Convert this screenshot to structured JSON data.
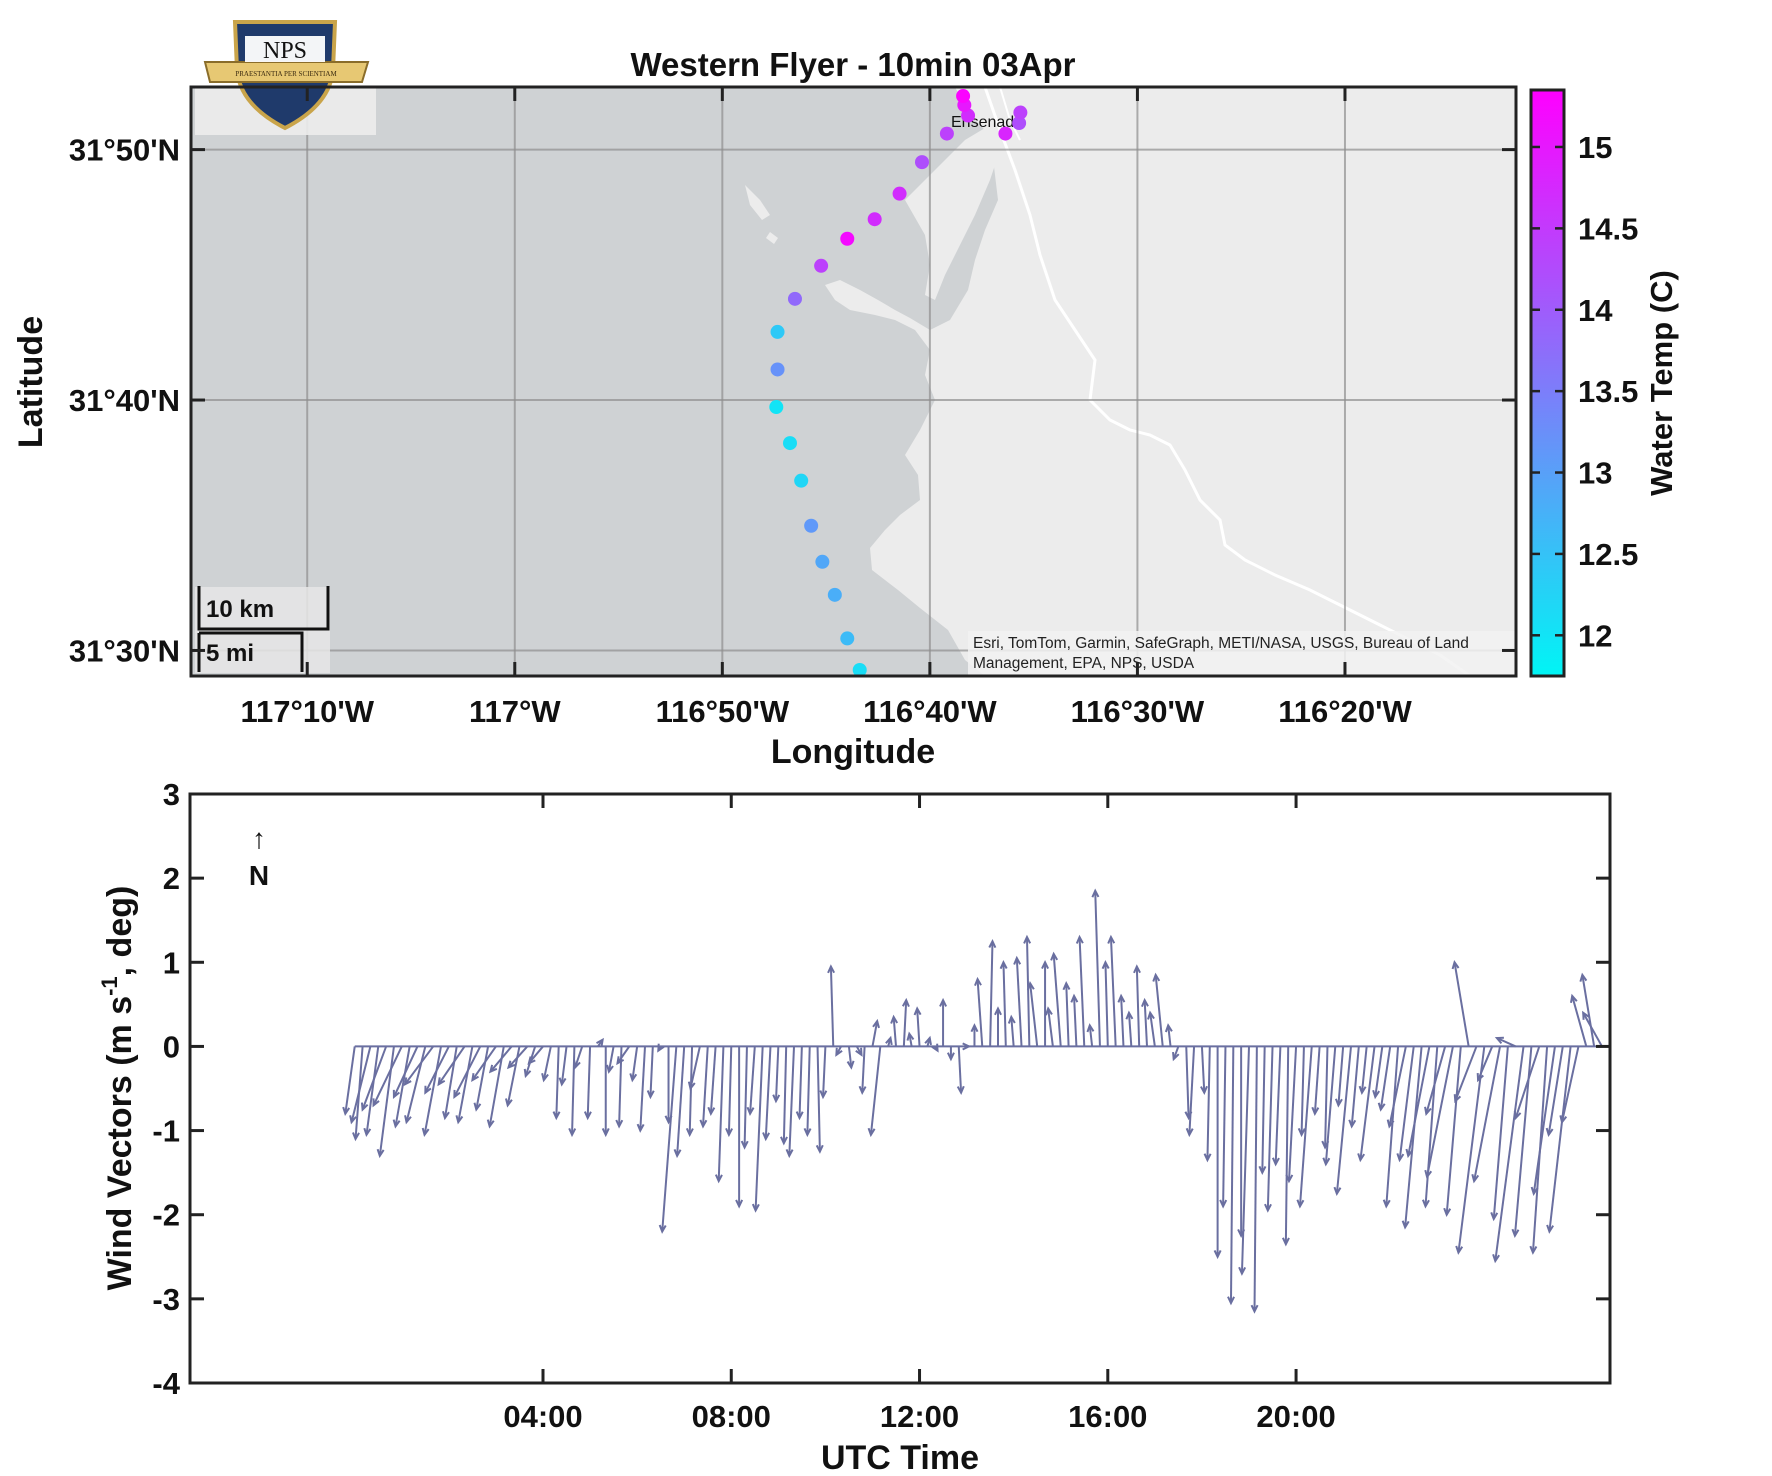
{
  "logo": {
    "text": "NPS",
    "motto": "PRAESTANTIA PER SCIENTIAM"
  },
  "map": {
    "title": "Western Flyer - 10min 03Apr",
    "xlabel": "Longitude",
    "ylabel": "Latitude",
    "x_ticks": [
      "117°10'W",
      "117°W",
      "116°50'W",
      "116°40'W",
      "116°30'W",
      "116°20'W"
    ],
    "y_ticks": [
      "31°50'N",
      "31°40'N",
      "31°30'N"
    ],
    "place_label": "Ensenada",
    "attribution_line1": "Esri, TomTom, Garmin, SafeGraph, METI/NASA, USGS, Bureau of Land",
    "attribution_line2": "Management, EPA, NPS, USDA",
    "scalebar_km": "10 km",
    "scalebar_mi": "5 mi",
    "colors": {
      "ocean": "#cfd2d4",
      "land": "#ececec",
      "road": "#ffffff",
      "grid": "#9a9a9a"
    }
  },
  "colorbar": {
    "label": "Water Temp (C)",
    "ticks": [
      "15",
      "14.5",
      "14",
      "13.5",
      "13",
      "12.5",
      "12"
    ],
    "range": [
      11.75,
      15.35
    ],
    "color_low": "#00f5f5",
    "color_high": "#ff00ff"
  },
  "wind": {
    "ylabel_main": "Wind Vectors (m s",
    "ylabel_sup": "-1",
    "ylabel_tail": ", deg)",
    "xlabel": "UTC Time",
    "x_ticks": [
      "04:00",
      "08:00",
      "12:00",
      "16:00",
      "20:00"
    ],
    "y_ticks": [
      "3",
      "2",
      "1",
      "0",
      "-1",
      "-2",
      "-3",
      "-4"
    ],
    "north_label": "N",
    "north_arrow": "↑",
    "line_color": "#6a6fa0"
  },
  "chart_data": [
    {
      "type": "scatter",
      "title": "Western Flyer - 10min 03Apr",
      "xlabel": "Longitude",
      "ylabel": "Latitude",
      "xlim": [
        -117.26,
        -116.196
      ],
      "ylim": [
        31.483,
        31.875
      ],
      "colorbar_label": "Water Temp (C)",
      "colorbar_range": [
        11.75,
        15.35
      ],
      "points": [
        {
          "lon": -116.723,
          "lat": 31.487,
          "temp": 12.1
        },
        {
          "lon": -116.733,
          "lat": 31.508,
          "temp": 12.6
        },
        {
          "lon": -116.743,
          "lat": 31.537,
          "temp": 12.8
        },
        {
          "lon": -116.753,
          "lat": 31.559,
          "temp": 12.9
        },
        {
          "lon": -116.762,
          "lat": 31.583,
          "temp": 13.1
        },
        {
          "lon": -116.77,
          "lat": 31.613,
          "temp": 12.2
        },
        {
          "lon": -116.779,
          "lat": 31.638,
          "temp": 12.1
        },
        {
          "lon": -116.79,
          "lat": 31.662,
          "temp": 12.0
        },
        {
          "lon": -116.789,
          "lat": 31.687,
          "temp": 13.2
        },
        {
          "lon": -116.789,
          "lat": 31.712,
          "temp": 12.4
        },
        {
          "lon": -116.775,
          "lat": 31.734,
          "temp": 13.8
        },
        {
          "lon": -116.754,
          "lat": 31.756,
          "temp": 14.4
        },
        {
          "lon": -116.733,
          "lat": 31.774,
          "temp": 15.2
        },
        {
          "lon": -116.711,
          "lat": 31.787,
          "temp": 14.7
        },
        {
          "lon": -116.691,
          "lat": 31.804,
          "temp": 14.7
        },
        {
          "lon": -116.673,
          "lat": 31.825,
          "temp": 14.2
        },
        {
          "lon": -116.653,
          "lat": 31.844,
          "temp": 14.4
        },
        {
          "lon": -116.636,
          "lat": 31.856,
          "temp": 14.7
        },
        {
          "lon": -116.639,
          "lat": 31.863,
          "temp": 15.0
        },
        {
          "lon": -116.64,
          "lat": 31.869,
          "temp": 15.3
        },
        {
          "lon": -116.606,
          "lat": 31.844,
          "temp": 14.8
        },
        {
          "lon": -116.595,
          "lat": 31.851,
          "temp": 14.2
        },
        {
          "lon": -116.594,
          "lat": 31.858,
          "temp": 14.4
        }
      ]
    },
    {
      "type": "line",
      "title": "",
      "xlabel": "UTC Time",
      "ylabel": "Wind Vectors (m s-1, deg)",
      "x_units": "hours UTC",
      "xlim": [
        -3.5,
        26.67
      ],
      "ylim": [
        -4,
        3
      ],
      "description_of_marks": "feather plot; each vector starts at (hour, 0) and ends at (hour + u, v)",
      "vectors": [
        {
          "t": 0.0,
          "u": -0.2,
          "v": -0.8
        },
        {
          "t": 0.167,
          "u": -0.15,
          "v": -1.1
        },
        {
          "t": 0.333,
          "u": -0.4,
          "v": -0.9
        },
        {
          "t": 0.5,
          "u": -0.25,
          "v": -1.05
        },
        {
          "t": 0.667,
          "u": -0.5,
          "v": -0.75
        },
        {
          "t": 0.833,
          "u": -0.3,
          "v": -1.3
        },
        {
          "t": 1.0,
          "u": -0.6,
          "v": -0.7
        },
        {
          "t": 1.167,
          "u": -0.3,
          "v": -0.95
        },
        {
          "t": 1.333,
          "u": -0.5,
          "v": -0.6
        },
        {
          "t": 1.5,
          "u": -0.4,
          "v": -0.9
        },
        {
          "t": 1.667,
          "u": -0.6,
          "v": -0.45
        },
        {
          "t": 1.833,
          "u": -0.35,
          "v": -1.05
        },
        {
          "t": 2.0,
          "u": -0.5,
          "v": -0.55
        },
        {
          "t": 2.167,
          "u": -0.25,
          "v": -0.85
        },
        {
          "t": 2.333,
          "u": -0.55,
          "v": -0.45
        },
        {
          "t": 2.5,
          "u": -0.3,
          "v": -0.9
        },
        {
          "t": 2.667,
          "u": -0.55,
          "v": -0.6
        },
        {
          "t": 2.833,
          "u": -0.25,
          "v": -0.75
        },
        {
          "t": 3.0,
          "u": -0.5,
          "v": -0.4
        },
        {
          "t": 3.167,
          "u": -0.3,
          "v": -0.95
        },
        {
          "t": 3.333,
          "u": -0.45,
          "v": -0.3
        },
        {
          "t": 3.5,
          "u": -0.25,
          "v": -0.7
        },
        {
          "t": 3.667,
          "u": -0.4,
          "v": -0.25
        },
        {
          "t": 3.833,
          "u": -0.2,
          "v": -0.35
        },
        {
          "t": 4.0,
          "u": -0.3,
          "v": -0.2
        },
        {
          "t": 4.167,
          "u": -0.15,
          "v": -0.4
        },
        {
          "t": 4.333,
          "u": -0.05,
          "v": -0.85
        },
        {
          "t": 4.5,
          "u": -0.1,
          "v": -0.45
        },
        {
          "t": 4.667,
          "u": -0.05,
          "v": -1.05
        },
        {
          "t": 4.833,
          "u": -0.15,
          "v": -0.25
        },
        {
          "t": 5.0,
          "u": -0.05,
          "v": -0.85
        },
        {
          "t": 5.167,
          "u": 0.1,
          "v": 0.08
        },
        {
          "t": 5.333,
          "u": 0.0,
          "v": -1.05
        },
        {
          "t": 5.5,
          "u": -0.1,
          "v": -0.3
        },
        {
          "t": 5.667,
          "u": -0.05,
          "v": -0.95
        },
        {
          "t": 5.833,
          "u": -0.25,
          "v": -0.2
        },
        {
          "t": 6.0,
          "u": -0.1,
          "v": -0.4
        },
        {
          "t": 6.167,
          "u": -0.1,
          "v": -1.0
        },
        {
          "t": 6.333,
          "u": -0.05,
          "v": -0.6
        },
        {
          "t": 6.5,
          "u": -0.05,
          "v": -0.05
        },
        {
          "t": 6.667,
          "u": 0.0,
          "v": -0.9
        },
        {
          "t": 6.833,
          "u": -0.3,
          "v": -2.2
        },
        {
          "t": 7.0,
          "u": -0.15,
          "v": -1.3
        },
        {
          "t": 7.167,
          "u": -0.05,
          "v": -1.05
        },
        {
          "t": 7.333,
          "u": -0.2,
          "v": -0.5
        },
        {
          "t": 7.5,
          "u": -0.1,
          "v": -0.95
        },
        {
          "t": 7.667,
          "u": -0.1,
          "v": -0.8
        },
        {
          "t": 7.833,
          "u": -0.1,
          "v": -1.6
        },
        {
          "t": 8.0,
          "u": -0.05,
          "v": -1.05
        },
        {
          "t": 8.167,
          "u": 0.0,
          "v": -1.9
        },
        {
          "t": 8.333,
          "u": -0.05,
          "v": -1.2
        },
        {
          "t": 8.5,
          "u": -0.1,
          "v": -0.8
        },
        {
          "t": 8.667,
          "u": -0.15,
          "v": -1.95
        },
        {
          "t": 8.833,
          "u": -0.1,
          "v": -1.1
        },
        {
          "t": 9.0,
          "u": -0.05,
          "v": -0.65
        },
        {
          "t": 9.167,
          "u": -0.05,
          "v": -1.15
        },
        {
          "t": 9.333,
          "u": -0.1,
          "v": -1.3
        },
        {
          "t": 9.5,
          "u": -0.05,
          "v": -0.85
        },
        {
          "t": 9.667,
          "u": -0.05,
          "v": -1.05
        },
        {
          "t": 9.833,
          "u": 0.05,
          "v": -1.25
        },
        {
          "t": 10.0,
          "u": -0.05,
          "v": -0.6
        },
        {
          "t": 10.167,
          "u": -0.05,
          "v": 0.95
        },
        {
          "t": 10.333,
          "u": -0.1,
          "v": -0.1
        },
        {
          "t": 10.5,
          "u": 0.05,
          "v": -0.25
        },
        {
          "t": 10.667,
          "u": 0.1,
          "v": -0.1
        },
        {
          "t": 10.833,
          "u": -0.05,
          "v": -0.55
        },
        {
          "t": 11.0,
          "u": 0.1,
          "v": 0.3
        },
        {
          "t": 11.167,
          "u": -0.2,
          "v": -1.05
        },
        {
          "t": 11.333,
          "u": 0.05,
          "v": 0.1
        },
        {
          "t": 11.5,
          "u": -0.05,
          "v": 0.35
        },
        {
          "t": 11.667,
          "u": 0.05,
          "v": 0.55
        },
        {
          "t": 11.833,
          "u": -0.05,
          "v": 0.15
        },
        {
          "t": 12.0,
          "u": -0.05,
          "v": 0.45
        },
        {
          "t": 12.167,
          "u": 0.05,
          "v": 0.1
        },
        {
          "t": 12.333,
          "u": 0.05,
          "v": -0.05
        },
        {
          "t": 12.5,
          "u": 0.0,
          "v": 0.55
        },
        {
          "t": 12.667,
          "u": 0.0,
          "v": -0.15
        },
        {
          "t": 12.833,
          "u": 0.05,
          "v": -0.55
        },
        {
          "t": 13.0,
          "u": 0.05,
          "v": 0.0
        },
        {
          "t": 13.167,
          "u": 0.0,
          "v": 0.25
        },
        {
          "t": 13.333,
          "u": -0.1,
          "v": 0.8
        },
        {
          "t": 13.5,
          "u": 0.05,
          "v": 1.25
        },
        {
          "t": 13.667,
          "u": 0.0,
          "v": 0.45
        },
        {
          "t": 13.833,
          "u": -0.05,
          "v": 1.0
        },
        {
          "t": 14.0,
          "u": -0.05,
          "v": 0.35
        },
        {
          "t": 14.167,
          "u": -0.1,
          "v": 1.05
        },
        {
          "t": 14.333,
          "u": -0.05,
          "v": 1.3
        },
        {
          "t": 14.5,
          "u": -0.15,
          "v": 0.75
        },
        {
          "t": 14.667,
          "u": 0.0,
          "v": 1.0
        },
        {
          "t": 14.833,
          "u": -0.1,
          "v": 0.45
        },
        {
          "t": 15.0,
          "u": -0.15,
          "v": 1.1
        },
        {
          "t": 15.167,
          "u": -0.05,
          "v": 0.75
        },
        {
          "t": 15.333,
          "u": -0.05,
          "v": 0.6
        },
        {
          "t": 15.5,
          "u": -0.1,
          "v": 1.3
        },
        {
          "t": 15.667,
          "u": -0.05,
          "v": 0.25
        },
        {
          "t": 15.833,
          "u": -0.1,
          "v": 1.85
        },
        {
          "t": 16.0,
          "u": -0.05,
          "v": 1.0
        },
        {
          "t": 16.167,
          "u": -0.1,
          "v": 1.3
        },
        {
          "t": 16.333,
          "u": -0.05,
          "v": 0.6
        },
        {
          "t": 16.5,
          "u": -0.05,
          "v": 0.4
        },
        {
          "t": 16.667,
          "u": -0.05,
          "v": 0.95
        },
        {
          "t": 16.833,
          "u": -0.05,
          "v": 0.55
        },
        {
          "t": 17.0,
          "u": -0.1,
          "v": 0.4
        },
        {
          "t": 17.167,
          "u": -0.15,
          "v": 0.85
        },
        {
          "t": 17.333,
          "u": -0.05,
          "v": 0.25
        },
        {
          "t": 17.5,
          "u": -0.1,
          "v": -0.15
        },
        {
          "t": 17.667,
          "u": 0.05,
          "v": -0.85
        },
        {
          "t": 17.833,
          "u": -0.1,
          "v": -1.05
        },
        {
          "t": 18.0,
          "u": 0.05,
          "v": -0.55
        },
        {
          "t": 18.167,
          "u": -0.05,
          "v": -1.35
        },
        {
          "t": 18.333,
          "u": 0.0,
          "v": -2.5
        },
        {
          "t": 18.5,
          "u": -0.05,
          "v": -1.9
        },
        {
          "t": 18.667,
          "u": -0.05,
          "v": -3.05
        },
        {
          "t": 18.833,
          "u": 0.0,
          "v": -2.25
        },
        {
          "t": 19.0,
          "u": -0.15,
          "v": -2.7
        },
        {
          "t": 19.167,
          "u": -0.05,
          "v": -3.15
        },
        {
          "t": 19.333,
          "u": -0.05,
          "v": -1.5
        },
        {
          "t": 19.5,
          "u": -0.1,
          "v": -1.95
        },
        {
          "t": 19.667,
          "u": -0.1,
          "v": -1.4
        },
        {
          "t": 19.833,
          "u": -0.05,
          "v": -2.35
        },
        {
          "t": 20.0,
          "u": -0.15,
          "v": -1.6
        },
        {
          "t": 20.167,
          "u": -0.05,
          "v": -1.05
        },
        {
          "t": 20.333,
          "u": -0.25,
          "v": -1.9
        },
        {
          "t": 20.5,
          "u": -0.1,
          "v": -0.8
        },
        {
          "t": 20.667,
          "u": -0.05,
          "v": -1.2
        },
        {
          "t": 20.833,
          "u": -0.2,
          "v": -1.4
        },
        {
          "t": 21.0,
          "u": -0.1,
          "v": -0.7
        },
        {
          "t": 21.167,
          "u": -0.3,
          "v": -1.75
        },
        {
          "t": 21.333,
          "u": -0.15,
          "v": -0.95
        },
        {
          "t": 21.5,
          "u": -0.1,
          "v": -0.55
        },
        {
          "t": 21.667,
          "u": -0.3,
          "v": -1.35
        },
        {
          "t": 21.833,
          "u": -0.15,
          "v": -0.6
        },
        {
          "t": 22.0,
          "u": -0.2,
          "v": -0.75
        },
        {
          "t": 22.167,
          "u": -0.25,
          "v": -1.9
        },
        {
          "t": 22.333,
          "u": -0.35,
          "v": -0.95
        },
        {
          "t": 22.5,
          "u": -0.3,
          "v": -1.35
        },
        {
          "t": 22.667,
          "u": -0.35,
          "v": -2.15
        },
        {
          "t": 22.833,
          "u": -0.45,
          "v": -1.3
        },
        {
          "t": 23.0,
          "u": -0.25,
          "v": -1.9
        },
        {
          "t": 23.167,
          "u": -0.4,
          "v": -0.8
        },
        {
          "t": 23.333,
          "u": -0.55,
          "v": -1.55
        },
        {
          "t": 23.5,
          "u": -0.3,
          "v": -2.0
        },
        {
          "t": 23.667,
          "u": -0.3,
          "v": 1.0
        },
        {
          "t": 23.833,
          "u": -0.45,
          "v": -0.65
        },
        {
          "t": 24.0,
          "u": -0.55,
          "v": -2.45
        },
        {
          "t": 24.167,
          "u": -0.3,
          "v": -0.4
        },
        {
          "t": 24.333,
          "u": -0.55,
          "v": -1.6
        },
        {
          "t": 24.5,
          "u": -0.3,
          "v": -2.05
        },
        {
          "t": 24.667,
          "u": -0.4,
          "v": 0.1
        },
        {
          "t": 24.833,
          "u": -0.6,
          "v": -2.55
        },
        {
          "t": 25.0,
          "u": -0.35,
          "v": -2.25
        },
        {
          "t": 25.167,
          "u": -0.5,
          "v": -0.85
        },
        {
          "t": 25.333,
          "u": -0.3,
          "v": -2.45
        },
        {
          "t": 25.5,
          "u": -0.45,
          "v": -1.75
        },
        {
          "t": 25.667,
          "u": -0.3,
          "v": -1.05
        },
        {
          "t": 25.833,
          "u": -0.45,
          "v": -2.2
        },
        {
          "t": 26.0,
          "u": -0.35,
          "v": -0.9
        },
        {
          "t": 26.167,
          "u": -0.3,
          "v": 0.6
        },
        {
          "t": 26.333,
          "u": -0.25,
          "v": 0.85
        },
        {
          "t": 26.5,
          "u": -0.4,
          "v": 0.4
        }
      ]
    }
  ]
}
